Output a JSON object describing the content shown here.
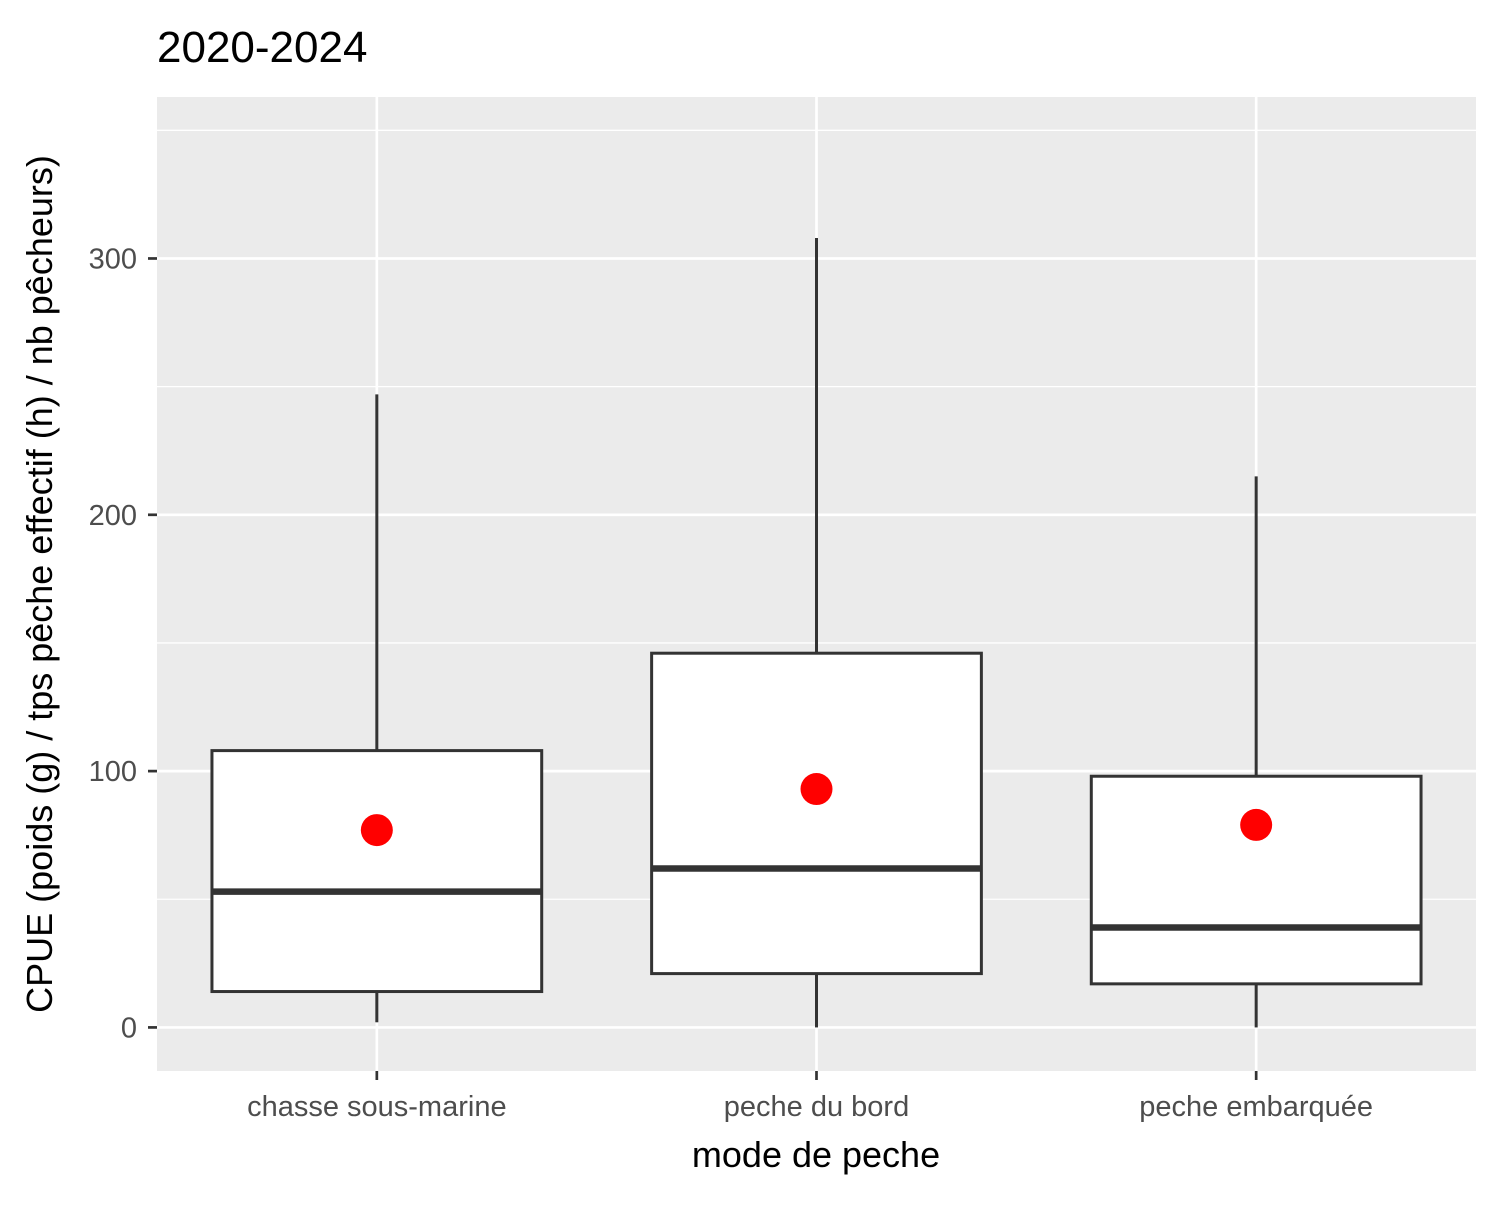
{
  "chart_data": {
    "type": "boxplot",
    "title": "2020-2024",
    "xlabel": "mode de peche",
    "ylabel": "CPUE (poids (g) / tps pêche effectif (h) / nb pêcheurs)",
    "ylim": [
      -17,
      363
    ],
    "yticks": [
      0,
      100,
      200,
      300
    ],
    "grid": true,
    "legend": "none",
    "colors": {
      "panel_background": "#ebebeb",
      "grid": "#ffffff",
      "box_fill": "#ffffff",
      "box_stroke": "#333333",
      "mean_point": "#ff0000",
      "tick_label": "#4d4d4d"
    },
    "categories": [
      "chasse sous-marine",
      "peche du bord",
      "peche embarquée"
    ],
    "boxes": [
      {
        "category": "chasse sous-marine",
        "whisker_low": 2,
        "q1": 14,
        "median": 53,
        "q3": 108,
        "whisker_high": 247,
        "mean": 77
      },
      {
        "category": "peche du bord",
        "whisker_low": 0,
        "q1": 21,
        "median": 62,
        "q3": 146,
        "whisker_high": 308,
        "mean": 93
      },
      {
        "category": "peche embarquée",
        "whisker_low": 0,
        "q1": 17,
        "median": 39,
        "q3": 98,
        "whisker_high": 215,
        "mean": 79
      }
    ]
  }
}
